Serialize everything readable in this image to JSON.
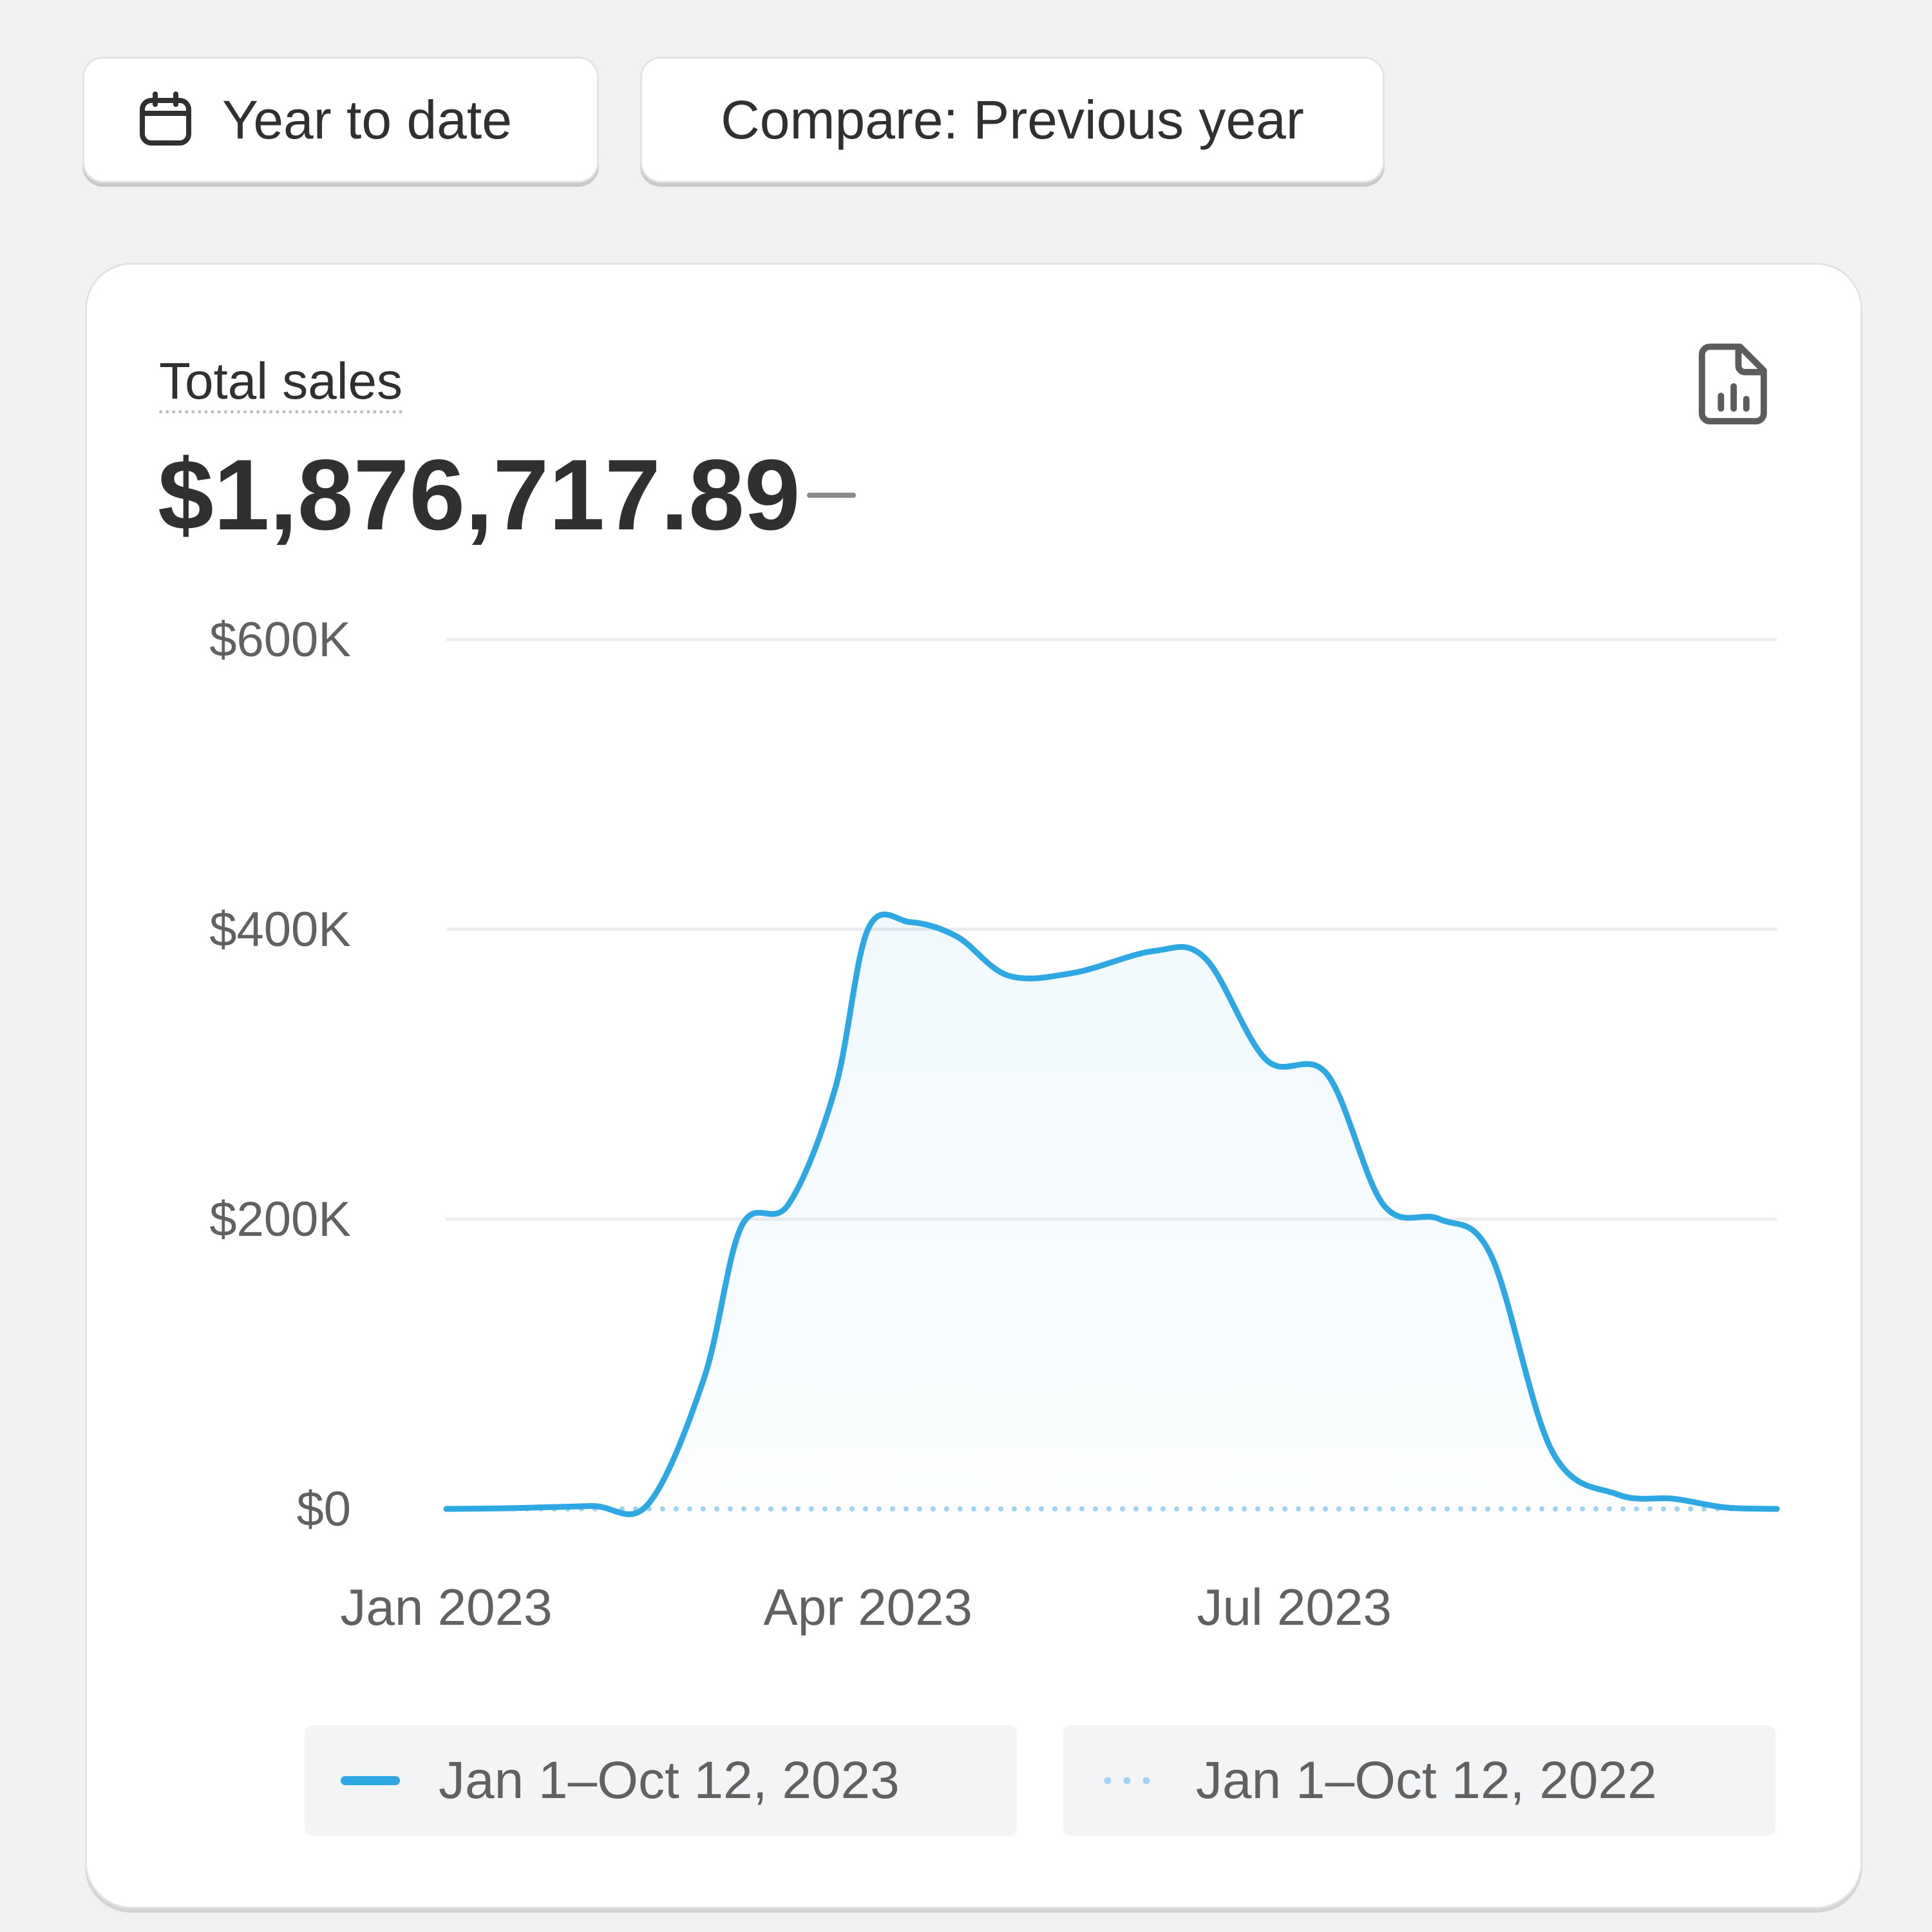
{
  "toolbar": {
    "date_range_label": "Year to date",
    "compare_label": "Compare: Previous year"
  },
  "card": {
    "metric_label": "Total sales",
    "metric_value": "$1,876,717.89",
    "export_icon": "file-chart-icon"
  },
  "colors": {
    "primary_series": "#2ea8e3",
    "comparison_series": "#9fd3f1",
    "grid": "#ececec"
  },
  "chart_data": {
    "type": "area",
    "title": "Total sales",
    "y_ticks": [
      "$600K",
      "$400K",
      "$200K",
      "$0"
    ],
    "y_tick_values": [
      600000,
      400000,
      200000,
      0
    ],
    "ylim": [
      0,
      600000
    ],
    "x_ticks": [
      "Jan 2023",
      "Apr 2023",
      "Jul 2023"
    ],
    "grid": true,
    "legend_position": "bottom",
    "series": [
      {
        "name": "Jan 1–Oct 12, 2023",
        "style": "solid-filled",
        "x": [
          "2023-01-01",
          "2023-01-15",
          "2023-02-01",
          "2023-02-13",
          "2023-02-25",
          "2023-03-05",
          "2023-03-15",
          "2023-03-25",
          "2023-04-01",
          "2023-04-10",
          "2023-04-20",
          "2023-05-01",
          "2023-05-15",
          "2023-06-01",
          "2023-06-12",
          "2023-06-25",
          "2023-07-08",
          "2023-07-20",
          "2023-08-01",
          "2023-08-12",
          "2023-08-25",
          "2023-09-08",
          "2023-09-20",
          "2023-10-01",
          "2023-10-12"
        ],
        "values": [
          0,
          500,
          2000,
          3000,
          90000,
          195000,
          210000,
          290000,
          400000,
          405000,
          395000,
          368000,
          370000,
          385000,
          380000,
          310000,
          300000,
          210000,
          200000,
          175000,
          40000,
          10000,
          7000,
          1000,
          0
        ]
      },
      {
        "name": "Jan 1–Oct 12, 2022",
        "style": "dotted",
        "x": [
          "2023-01-01",
          "2023-10-12"
        ],
        "values": [
          0,
          0
        ]
      }
    ]
  }
}
